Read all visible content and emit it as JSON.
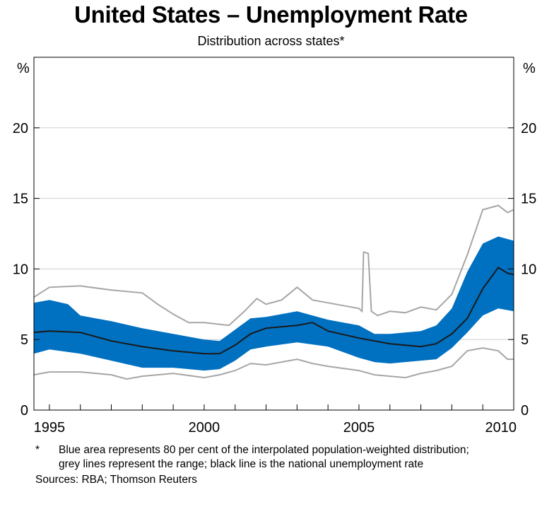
{
  "title": "United States – Unemployment Rate",
  "subtitle": "Distribution across states*",
  "notes": {
    "marker": "*",
    "text": "Blue area represents 80 per cent of the interpolated population-weighted distribution; grey lines represent the range; black line is the national unemployment rate",
    "sources": "Sources: RBA; Thomson Reuters"
  },
  "colors": {
    "band": "#0070c0",
    "range": "#a6a6a6",
    "national": "#1a1a1a",
    "grid": "#d0d0d0"
  },
  "chart_data": {
    "type": "area",
    "x_label_unit": "year",
    "y_unit_left": "%",
    "y_unit_right": "%",
    "xlim": [
      1994.5,
      2010.0
    ],
    "ylim": [
      0,
      25
    ],
    "x_ticks": [
      "1995",
      "2000",
      "2005",
      "2010"
    ],
    "y_ticks": [
      "0",
      "5",
      "10",
      "15",
      "20"
    ],
    "grid": true,
    "series": [
      {
        "role": "max",
        "values": [
          [
            1994.5,
            8.0
          ],
          [
            1995,
            8.7
          ],
          [
            1996,
            8.8
          ],
          [
            1997,
            8.5
          ],
          [
            1998,
            8.3
          ],
          [
            1998.5,
            7.5
          ],
          [
            1999,
            6.8
          ],
          [
            1999.5,
            6.2
          ],
          [
            2000,
            6.2
          ],
          [
            2000.8,
            6.0
          ],
          [
            2001.3,
            7.0
          ],
          [
            2001.7,
            7.9
          ],
          [
            2002,
            7.5
          ],
          [
            2002.5,
            7.8
          ],
          [
            2003,
            8.7
          ],
          [
            2003.5,
            7.8
          ],
          [
            2004,
            7.6
          ],
          [
            2004.5,
            7.4
          ],
          [
            2005,
            7.2
          ],
          [
            2005.1,
            7.0
          ],
          [
            2005.15,
            11.2
          ],
          [
            2005.3,
            11.1
          ],
          [
            2005.4,
            7.0
          ],
          [
            2005.6,
            6.7
          ],
          [
            2006,
            7.0
          ],
          [
            2006.5,
            6.9
          ],
          [
            2007,
            7.3
          ],
          [
            2007.5,
            7.1
          ],
          [
            2008,
            8.2
          ],
          [
            2008.5,
            11.0
          ],
          [
            2009,
            14.2
          ],
          [
            2009.5,
            14.5
          ],
          [
            2009.8,
            14.0
          ],
          [
            2010,
            14.2
          ]
        ]
      },
      {
        "role": "p90",
        "values": [
          [
            1994.5,
            7.6
          ],
          [
            1995,
            7.8
          ],
          [
            1995.6,
            7.5
          ],
          [
            1996,
            6.7
          ],
          [
            1997,
            6.3
          ],
          [
            1998,
            5.8
          ],
          [
            1999,
            5.4
          ],
          [
            2000,
            5.0
          ],
          [
            2000.5,
            4.9
          ],
          [
            2001,
            5.7
          ],
          [
            2001.5,
            6.5
          ],
          [
            2002,
            6.6
          ],
          [
            2003,
            7.0
          ],
          [
            2003.5,
            6.7
          ],
          [
            2004,
            6.4
          ],
          [
            2004.5,
            6.2
          ],
          [
            2005,
            6.0
          ],
          [
            2005.5,
            5.4
          ],
          [
            2006,
            5.4
          ],
          [
            2007,
            5.6
          ],
          [
            2007.5,
            6.0
          ],
          [
            2008,
            7.2
          ],
          [
            2008.5,
            9.8
          ],
          [
            2009,
            11.8
          ],
          [
            2009.5,
            12.3
          ],
          [
            2010,
            12.0
          ]
        ]
      },
      {
        "role": "p10",
        "values": [
          [
            1994.5,
            4.0
          ],
          [
            1995,
            4.3
          ],
          [
            1996,
            4.0
          ],
          [
            1997,
            3.5
          ],
          [
            1998,
            3.0
          ],
          [
            1999,
            3.0
          ],
          [
            2000,
            2.8
          ],
          [
            2000.5,
            2.9
          ],
          [
            2001,
            3.5
          ],
          [
            2001.5,
            4.3
          ],
          [
            2002,
            4.5
          ],
          [
            2003,
            4.8
          ],
          [
            2004,
            4.5
          ],
          [
            2005,
            3.7
          ],
          [
            2005.5,
            3.4
          ],
          [
            2006,
            3.3
          ],
          [
            2007,
            3.5
          ],
          [
            2007.5,
            3.6
          ],
          [
            2008,
            4.4
          ],
          [
            2008.5,
            5.5
          ],
          [
            2009,
            6.7
          ],
          [
            2009.5,
            7.2
          ],
          [
            2010,
            7.0
          ]
        ]
      },
      {
        "role": "min",
        "values": [
          [
            1994.5,
            2.5
          ],
          [
            1995,
            2.7
          ],
          [
            1996,
            2.7
          ],
          [
            1997,
            2.5
          ],
          [
            1997.5,
            2.2
          ],
          [
            1998,
            2.4
          ],
          [
            1999,
            2.6
          ],
          [
            2000,
            2.3
          ],
          [
            2000.5,
            2.5
          ],
          [
            2001,
            2.8
          ],
          [
            2001.5,
            3.3
          ],
          [
            2002,
            3.2
          ],
          [
            2003,
            3.6
          ],
          [
            2003.5,
            3.3
          ],
          [
            2004,
            3.1
          ],
          [
            2005,
            2.8
          ],
          [
            2005.5,
            2.5
          ],
          [
            2006,
            2.4
          ],
          [
            2006.5,
            2.3
          ],
          [
            2007,
            2.6
          ],
          [
            2007.5,
            2.8
          ],
          [
            2008,
            3.1
          ],
          [
            2008.5,
            4.2
          ],
          [
            2009,
            4.4
          ],
          [
            2009.5,
            4.2
          ],
          [
            2009.8,
            3.6
          ],
          [
            2010,
            3.6
          ]
        ]
      },
      {
        "role": "national",
        "values": [
          [
            1994.5,
            5.5
          ],
          [
            1995,
            5.6
          ],
          [
            1996,
            5.5
          ],
          [
            1997,
            4.9
          ],
          [
            1998,
            4.5
          ],
          [
            1999,
            4.2
          ],
          [
            2000,
            4.0
          ],
          [
            2000.5,
            4.0
          ],
          [
            2001,
            4.6
          ],
          [
            2001.5,
            5.4
          ],
          [
            2002,
            5.8
          ],
          [
            2003,
            6.0
          ],
          [
            2003.5,
            6.2
          ],
          [
            2004,
            5.6
          ],
          [
            2005,
            5.1
          ],
          [
            2005.5,
            4.9
          ],
          [
            2006,
            4.7
          ],
          [
            2007,
            4.5
          ],
          [
            2007.5,
            4.7
          ],
          [
            2008,
            5.4
          ],
          [
            2008.5,
            6.5
          ],
          [
            2009,
            8.6
          ],
          [
            2009.5,
            10.1
          ],
          [
            2009.8,
            9.7
          ],
          [
            2010,
            9.6
          ]
        ]
      }
    ]
  }
}
